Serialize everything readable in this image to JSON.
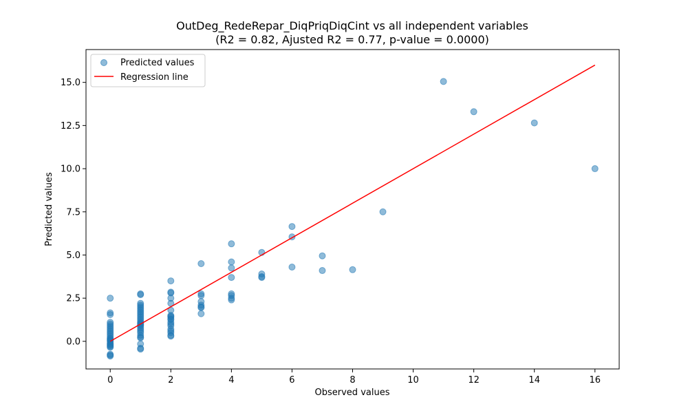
{
  "chart_data": {
    "type": "scatter",
    "title": "OutDeg_RedeRepar_DiqPriqDiqCint vs all independent variables",
    "subtitle": "(R2 = 0.82, Ajusted R2 = 0.77, p-value = 0.0000)",
    "xlabel": "Observed values",
    "ylabel": "Predicted values",
    "xlim": [
      -0.8,
      16.8
    ],
    "ylim": [
      -1.6,
      16.9
    ],
    "xticks": [
      0,
      2,
      4,
      6,
      8,
      10,
      12,
      14,
      16
    ],
    "yticks": [
      0.0,
      2.5,
      5.0,
      7.5,
      10.0,
      12.5,
      15.0
    ],
    "xtick_labels": [
      "0",
      "2",
      "4",
      "6",
      "8",
      "10",
      "12",
      "14",
      "16"
    ],
    "ytick_labels": [
      "0.0",
      "2.5",
      "5.0",
      "7.5",
      "10.0",
      "12.5",
      "15.0"
    ],
    "legend_position": "top-left",
    "grid": false,
    "series": [
      {
        "name": "Predicted values",
        "kind": "scatter",
        "color": "#1f77b4",
        "x": [
          0,
          0,
          0,
          0,
          0,
          0,
          0,
          0,
          0,
          0,
          0,
          0,
          0,
          0,
          0,
          0,
          0,
          0,
          0,
          0,
          0,
          0,
          0,
          0,
          0,
          0,
          1,
          1,
          1,
          1,
          1,
          1,
          1,
          1,
          1,
          1,
          1,
          1,
          1,
          1,
          1,
          1,
          1,
          1,
          1,
          1,
          1,
          1,
          1,
          1,
          1,
          1,
          1,
          1,
          2,
          2,
          2,
          2,
          2,
          2,
          2,
          2,
          2,
          2,
          2,
          2,
          2,
          2,
          2,
          2,
          2,
          2,
          2,
          3,
          3,
          3,
          3,
          3,
          3,
          3,
          3,
          4,
          4,
          4,
          4,
          4,
          4,
          4,
          4,
          5,
          5,
          5,
          5,
          6,
          6,
          6,
          7,
          7,
          8,
          9,
          11,
          12,
          14,
          16
        ],
        "y": [
          2.5,
          1.65,
          1.55,
          1.1,
          1.0,
          0.9,
          0.8,
          0.7,
          0.6,
          0.5,
          0.4,
          0.3,
          0.2,
          0.15,
          0.1,
          0.05,
          0.0,
          -0.1,
          -0.15,
          -0.2,
          -0.25,
          -0.3,
          -0.35,
          -0.75,
          -0.8,
          -0.85,
          2.75,
          2.7,
          2.2,
          2.1,
          2.0,
          1.9,
          1.8,
          1.7,
          1.6,
          1.5,
          1.4,
          1.3,
          1.2,
          1.1,
          1.05,
          1.0,
          0.95,
          0.9,
          0.8,
          0.7,
          0.6,
          0.35,
          0.25,
          0.2,
          -0.15,
          -0.4,
          -0.45,
          0.5,
          3.5,
          2.85,
          2.8,
          2.5,
          2.2,
          1.8,
          1.5,
          1.45,
          1.4,
          1.3,
          1.25,
          1.1,
          1.0,
          0.9,
          0.7,
          0.6,
          0.5,
          0.35,
          0.3,
          4.5,
          2.75,
          2.65,
          2.3,
          2.1,
          2.0,
          1.95,
          1.6,
          5.65,
          4.6,
          4.25,
          3.7,
          2.75,
          2.65,
          2.5,
          2.4,
          5.15,
          3.9,
          3.75,
          3.7,
          6.65,
          6.05,
          4.3,
          4.95,
          4.1,
          4.15,
          7.5,
          15.05,
          13.3,
          12.65,
          10.0
        ]
      },
      {
        "name": "Regression line",
        "kind": "line",
        "color": "#ff0000",
        "x": [
          0,
          16
        ],
        "y": [
          0,
          16
        ]
      }
    ]
  }
}
